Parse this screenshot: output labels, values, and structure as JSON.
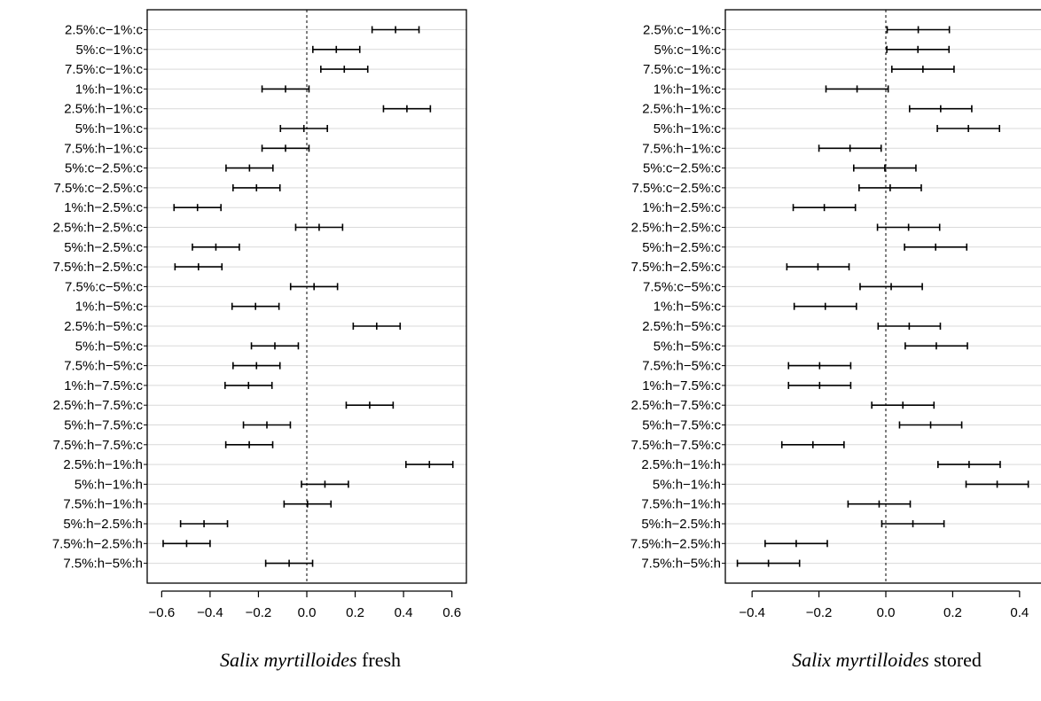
{
  "chart_data": [
    {
      "type": "errorbar",
      "title_italic": "Salix myrtilloides",
      "title_rest": " fresh",
      "xlim": [
        -0.66,
        0.66
      ],
      "xticks": [
        -0.6,
        -0.4,
        -0.2,
        0.0,
        0.2,
        0.4,
        0.6
      ],
      "xtick_labels": [
        "−0.6",
        "−0.4",
        "−0.2",
        "0.0",
        "0.2",
        "0.4",
        "0.6"
      ],
      "reference_line_x": 0.0,
      "grid": "horizontal",
      "categories": [
        "2.5%:c−1%:c",
        "5%:c−1%:c",
        "7.5%:c−1%:c",
        "1%:h−1%:c",
        "2.5%:h−1%:c",
        "5%:h−1%:c",
        "7.5%:h−1%:c",
        "5%:c−2.5%:c",
        "7.5%:c−2.5%:c",
        "1%:h−2.5%:c",
        "2.5%:h−2.5%:c",
        "5%:h−2.5%:c",
        "7.5%:h−2.5%:c",
        "7.5%:c−5%:c",
        "1%:h−5%:c",
        "2.5%:h−5%:c",
        "5%:h−5%:c",
        "7.5%:h−5%:c",
        "1%:h−7.5%:c",
        "2.5%:h−7.5%:c",
        "5%:h−7.5%:c",
        "7.5%:h−7.5%:c",
        "2.5%:h−1%:h",
        "5%:h−1%:h",
        "7.5%:h−1%:h",
        "5%:h−2.5%:h",
        "7.5%:h−2.5%:h",
        "7.5%:h−5%:h"
      ],
      "estimate": [
        0.367,
        0.122,
        0.155,
        -0.088,
        0.414,
        -0.012,
        -0.088,
        -0.237,
        -0.208,
        -0.452,
        0.051,
        -0.376,
        -0.448,
        0.03,
        -0.212,
        0.289,
        -0.132,
        -0.208,
        -0.241,
        0.26,
        -0.165,
        -0.238,
        0.507,
        0.075,
        0.003,
        -0.425,
        -0.497,
        -0.073
      ],
      "lower": [
        0.27,
        0.025,
        0.058,
        -0.185,
        0.317,
        -0.109,
        -0.185,
        -0.334,
        -0.305,
        -0.549,
        -0.046,
        -0.473,
        -0.545,
        -0.067,
        -0.309,
        0.192,
        -0.229,
        -0.305,
        -0.338,
        0.163,
        -0.262,
        -0.335,
        0.41,
        -0.022,
        -0.094,
        -0.522,
        -0.594,
        -0.17
      ],
      "upper": [
        0.464,
        0.219,
        0.252,
        0.009,
        0.511,
        0.085,
        0.009,
        -0.14,
        -0.111,
        -0.355,
        0.148,
        -0.279,
        -0.351,
        0.127,
        -0.115,
        0.386,
        -0.035,
        -0.111,
        -0.144,
        0.357,
        -0.068,
        -0.141,
        0.604,
        0.172,
        0.1,
        -0.328,
        -0.4,
        0.024
      ]
    },
    {
      "type": "errorbar",
      "title_italic": "Salix myrtilloides",
      "title_rest": " stored",
      "xlim": [
        -0.48,
        0.48
      ],
      "xticks": [
        -0.4,
        -0.2,
        0.0,
        0.2,
        0.4
      ],
      "xtick_labels": [
        "−0.4",
        "−0.2",
        "0.0",
        "0.2",
        "0.4"
      ],
      "reference_line_x": 0.0,
      "grid": "horizontal",
      "categories": [
        "2.5%:c−1%:c",
        "5%:c−1%:c",
        "7.5%:c−1%:c",
        "1%:h−1%:c",
        "2.5%:h−1%:c",
        "5%:h−1%:c",
        "7.5%:h−1%:c",
        "5%:c−2.5%:c",
        "7.5%:c−2.5%:c",
        "1%:h−2.5%:c",
        "2.5%:h−2.5%:c",
        "5%:h−2.5%:c",
        "7.5%:h−2.5%:c",
        "7.5%:c−5%:c",
        "1%:h−5%:c",
        "2.5%:h−5%:c",
        "5%:h−5%:c",
        "7.5%:h−5%:c",
        "1%:h−7.5%:c",
        "2.5%:h−7.5%:c",
        "5%:h−7.5%:c",
        "7.5%:h−7.5%:c",
        "2.5%:h−1%:h",
        "5%:h−1%:h",
        "7.5%:h−1%:h",
        "5%:h−2.5%:h",
        "7.5%:h−2.5%:h",
        "7.5%:h−5%:h"
      ],
      "estimate": [
        0.097,
        0.096,
        0.111,
        -0.086,
        0.164,
        0.247,
        -0.107,
        -0.003,
        0.013,
        -0.184,
        0.068,
        0.149,
        -0.203,
        0.016,
        -0.181,
        0.07,
        0.151,
        -0.198,
        -0.198,
        0.051,
        0.134,
        -0.218,
        0.249,
        0.333,
        -0.02,
        0.081,
        -0.268,
        -0.351
      ],
      "lower": [
        0.004,
        0.003,
        0.018,
        -0.179,
        0.071,
        0.154,
        -0.2,
        -0.096,
        -0.08,
        -0.277,
        -0.025,
        0.056,
        -0.296,
        -0.077,
        -0.274,
        -0.023,
        0.058,
        -0.291,
        -0.291,
        -0.042,
        0.041,
        -0.311,
        0.156,
        0.24,
        -0.113,
        -0.012,
        -0.361,
        -0.444
      ],
      "upper": [
        0.19,
        0.189,
        0.204,
        0.007,
        0.257,
        0.34,
        -0.014,
        0.09,
        0.106,
        -0.091,
        0.161,
        0.242,
        -0.11,
        0.109,
        -0.088,
        0.163,
        0.244,
        -0.105,
        -0.105,
        0.144,
        0.227,
        -0.125,
        0.342,
        0.426,
        0.073,
        0.174,
        -0.175,
        -0.258
      ]
    }
  ]
}
